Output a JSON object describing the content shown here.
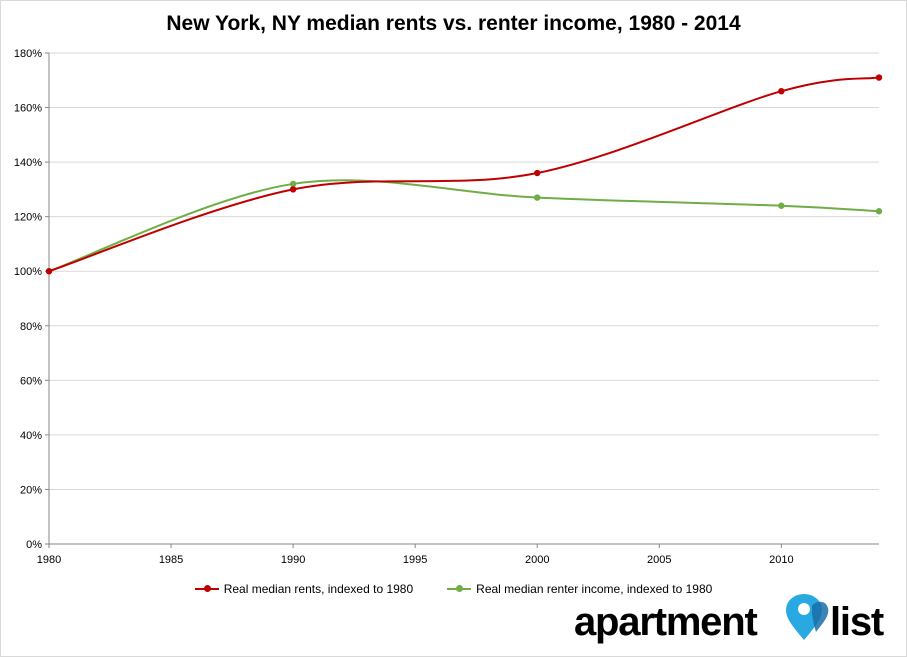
{
  "chart_data": {
    "type": "line",
    "title": "New York, NY median rents vs. renter income, 1980 - 2014",
    "xlabel": "",
    "ylabel": "",
    "xlim": [
      1980,
      2014
    ],
    "ylim": [
      0,
      180
    ],
    "x_ticks": [
      1980,
      1985,
      1990,
      1995,
      2000,
      2005,
      2010
    ],
    "y_ticks": [
      0,
      20,
      40,
      60,
      80,
      100,
      120,
      140,
      160,
      180
    ],
    "y_tick_labels": [
      "0%",
      "20%",
      "40%",
      "60%",
      "80%",
      "100%",
      "120%",
      "140%",
      "160%",
      "180%"
    ],
    "grid": true,
    "legend_position": "bottom",
    "series": [
      {
        "name": "Real median rents, indexed to 1980",
        "color": "#c00000",
        "x": [
          1980,
          1990,
          2000,
          2010,
          2014
        ],
        "y": [
          100,
          130,
          136,
          166,
          171
        ]
      },
      {
        "name": "Real median renter income, indexed to 1980",
        "color": "#70ad47",
        "x": [
          1980,
          1990,
          2000,
          2010,
          2014
        ],
        "y": [
          100,
          132,
          127,
          124,
          122
        ]
      }
    ]
  },
  "logo": {
    "text_left": "apartment",
    "text_right": "list",
    "icon": "map-pin-heart-icon",
    "pin_color": "#29a9e1"
  }
}
